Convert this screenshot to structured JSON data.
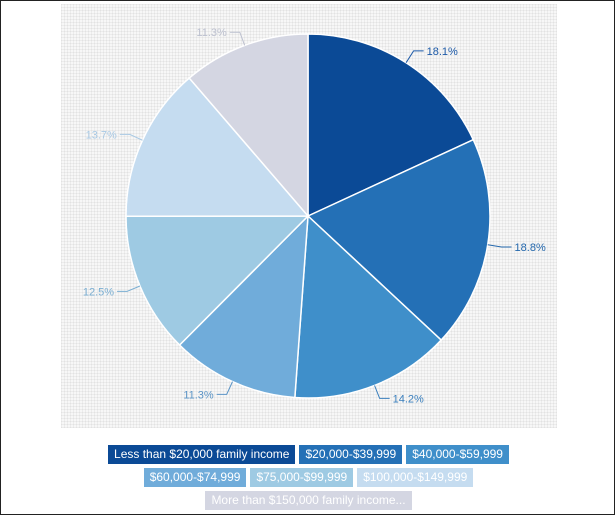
{
  "chart_data": {
    "type": "pie",
    "title": "",
    "start": "top",
    "direction": "clockwise",
    "series": [
      {
        "name": "Less than $20,000 family income",
        "value": 18.1,
        "label": "18.1%",
        "color": "#0b4a96",
        "label_color": "#1d5aa8",
        "legend_text_color": "#ffffff"
      },
      {
        "name": "$20,000-$39,999",
        "value": 18.8,
        "label": "18.8%",
        "color": "#2470b6",
        "label_color": "#2468ad",
        "legend_text_color": "#ffffff"
      },
      {
        "name": "$40,000-$59,999",
        "value": 14.2,
        "label": "14.2%",
        "color": "#3f8fca",
        "label_color": "#3a7fbd",
        "legend_text_color": "#ffffff"
      },
      {
        "name": "$60,000-$74,999",
        "value": 11.3,
        "label": "11.3%",
        "color": "#70acda",
        "label_color": "#5b94c6",
        "legend_text_color": "#ffffff"
      },
      {
        "name": "$75,000-$99,999",
        "value": 12.5,
        "label": "12.5%",
        "color": "#9ecae3",
        "label_color": "#7aaed2",
        "legend_text_color": "#ffffff"
      },
      {
        "name": "$100,000-$149,999",
        "value": 13.7,
        "label": "13.7%",
        "color": "#c5dcf0",
        "label_color": "#a9c9e4",
        "legend_text_color": "#ffffff"
      },
      {
        "name": "More than $150,000 family income...",
        "value": 11.3,
        "label": "11.3%",
        "color": "#d4d6e2",
        "label_color": "#bcc0cf",
        "legend_text_color": "#ffffff"
      }
    ]
  }
}
